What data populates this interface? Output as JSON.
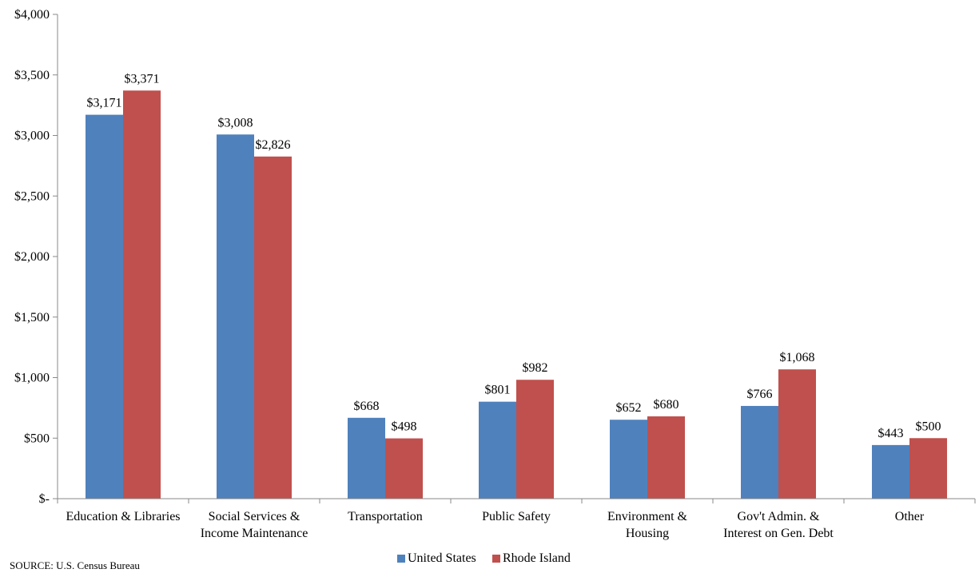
{
  "chart_data": {
    "type": "bar",
    "categories": [
      [
        "Education & Libraries"
      ],
      [
        "Social Services &",
        "Income Maintenance"
      ],
      [
        "Transportation"
      ],
      [
        "Public Safety"
      ],
      [
        "Environment &",
        "Housing"
      ],
      [
        "Gov't Admin. &",
        "Interest on Gen. Debt"
      ],
      [
        "Other"
      ]
    ],
    "series": [
      {
        "name": "United States",
        "color": "#4f81bd",
        "values": [
          3171,
          3008,
          668,
          801,
          652,
          766,
          443
        ],
        "labels": [
          "$3,171",
          "$3,008",
          "$668",
          "$801",
          "$652",
          "$766",
          "$443"
        ]
      },
      {
        "name": "Rhode Island",
        "color": "#c0504d",
        "values": [
          3371,
          2826,
          498,
          982,
          680,
          1068,
          500
        ],
        "labels": [
          "$3,371",
          "$2,826",
          "$498",
          "$982",
          "$680",
          "$1,068",
          "$500"
        ]
      }
    ],
    "ylim": [
      0,
      4000
    ],
    "yticks": [
      0,
      500,
      1000,
      1500,
      2000,
      2500,
      3000,
      3500,
      4000
    ],
    "ytick_labels": [
      "$-",
      "$500",
      "$1,000",
      "$1,500",
      "$2,000",
      "$2,500",
      "$3,000",
      "$3,500",
      "$4,000"
    ],
    "grid": false,
    "legend_position": "bottom-center",
    "source": "SOURCE: U.S. Census Bureau"
  }
}
